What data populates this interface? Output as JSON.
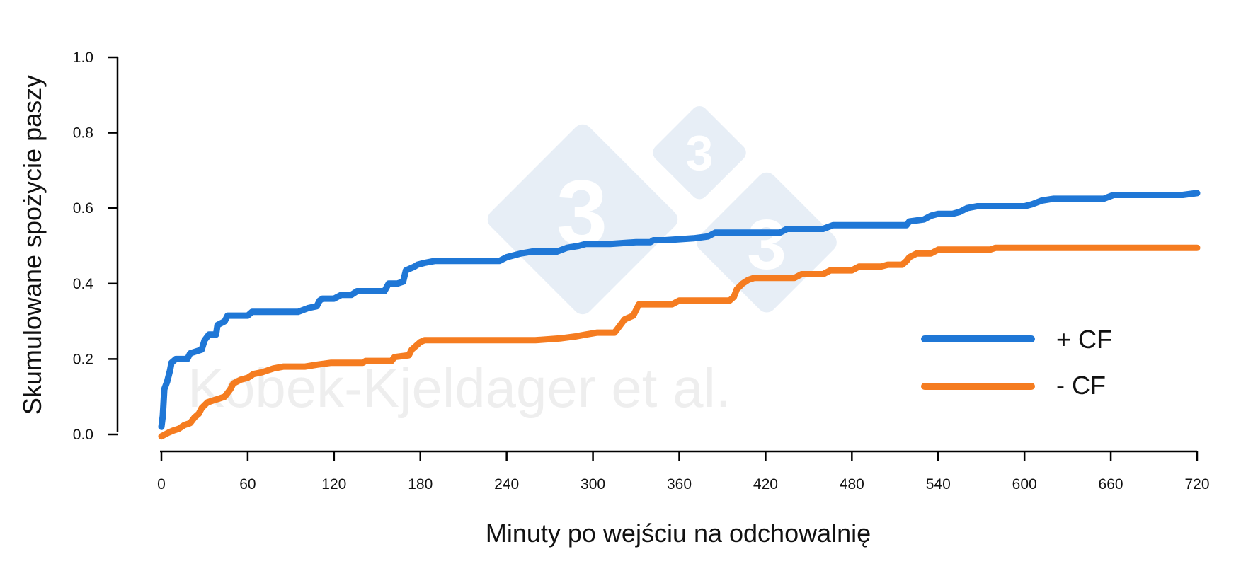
{
  "chart_data": {
    "type": "line",
    "title": "",
    "xlabel": "Minuty po wejściu na odchowalnię",
    "ylabel": "Skumulowane spożycie paszy",
    "xlim": [
      0,
      720
    ],
    "ylim": [
      0.0,
      1.0
    ],
    "xticks": [
      0,
      60,
      120,
      180,
      240,
      300,
      360,
      420,
      480,
      540,
      600,
      660,
      720
    ],
    "xtick_labels": [
      "0",
      "60",
      "120",
      "180",
      "240",
      "300",
      "360",
      "420",
      "480",
      "540",
      "600",
      "660",
      "720"
    ],
    "yticks": [
      0.0,
      0.2,
      0.4,
      0.6,
      0.8,
      1.0
    ],
    "ytick_labels": [
      "0.0",
      "0.2",
      "0.4",
      "0.6",
      "0.8",
      "1.0"
    ],
    "grid": false,
    "legend_position": "right",
    "watermark": "Kobek-Kjeldager et al.",
    "series": [
      {
        "name": "+ CF",
        "color": "#1f77d6",
        "points": [
          [
            0,
            0.02
          ],
          [
            1,
            0.05
          ],
          [
            2,
            0.12
          ],
          [
            4,
            0.14
          ],
          [
            6,
            0.17
          ],
          [
            7,
            0.19
          ],
          [
            10,
            0.2
          ],
          [
            18,
            0.2
          ],
          [
            20,
            0.215
          ],
          [
            28,
            0.225
          ],
          [
            30,
            0.25
          ],
          [
            33,
            0.265
          ],
          [
            38,
            0.265
          ],
          [
            39,
            0.29
          ],
          [
            44,
            0.3
          ],
          [
            46,
            0.315
          ],
          [
            60,
            0.315
          ],
          [
            63,
            0.325
          ],
          [
            80,
            0.325
          ],
          [
            95,
            0.325
          ],
          [
            102,
            0.335
          ],
          [
            108,
            0.34
          ],
          [
            110,
            0.355
          ],
          [
            112,
            0.36
          ],
          [
            120,
            0.36
          ],
          [
            125,
            0.37
          ],
          [
            132,
            0.37
          ],
          [
            136,
            0.38
          ],
          [
            155,
            0.38
          ],
          [
            158,
            0.4
          ],
          [
            164,
            0.4
          ],
          [
            168,
            0.405
          ],
          [
            170,
            0.435
          ],
          [
            176,
            0.445
          ],
          [
            178,
            0.45
          ],
          [
            183,
            0.455
          ],
          [
            190,
            0.46
          ],
          [
            210,
            0.46
          ],
          [
            235,
            0.46
          ],
          [
            240,
            0.47
          ],
          [
            250,
            0.48
          ],
          [
            258,
            0.485
          ],
          [
            275,
            0.485
          ],
          [
            282,
            0.495
          ],
          [
            290,
            0.5
          ],
          [
            295,
            0.505
          ],
          [
            312,
            0.505
          ],
          [
            330,
            0.51
          ],
          [
            340,
            0.51
          ],
          [
            342,
            0.515
          ],
          [
            350,
            0.515
          ],
          [
            370,
            0.52
          ],
          [
            380,
            0.525
          ],
          [
            385,
            0.535
          ],
          [
            405,
            0.535
          ],
          [
            430,
            0.535
          ],
          [
            435,
            0.545
          ],
          [
            460,
            0.545
          ],
          [
            467,
            0.555
          ],
          [
            500,
            0.555
          ],
          [
            518,
            0.555
          ],
          [
            520,
            0.565
          ],
          [
            530,
            0.57
          ],
          [
            535,
            0.58
          ],
          [
            540,
            0.585
          ],
          [
            550,
            0.585
          ],
          [
            555,
            0.59
          ],
          [
            560,
            0.6
          ],
          [
            567,
            0.605
          ],
          [
            580,
            0.605
          ],
          [
            600,
            0.605
          ],
          [
            605,
            0.61
          ],
          [
            612,
            0.62
          ],
          [
            620,
            0.625
          ],
          [
            640,
            0.625
          ],
          [
            655,
            0.625
          ],
          [
            662,
            0.635
          ],
          [
            690,
            0.635
          ],
          [
            710,
            0.635
          ],
          [
            720,
            0.64
          ]
        ]
      },
      {
        "name": "- CF",
        "color": "#f57c20",
        "points": [
          [
            0,
            -0.005
          ],
          [
            5,
            0.005
          ],
          [
            8,
            0.01
          ],
          [
            12,
            0.015
          ],
          [
            16,
            0.025
          ],
          [
            20,
            0.03
          ],
          [
            23,
            0.045
          ],
          [
            26,
            0.055
          ],
          [
            28,
            0.07
          ],
          [
            32,
            0.085
          ],
          [
            36,
            0.09
          ],
          [
            40,
            0.095
          ],
          [
            44,
            0.1
          ],
          [
            48,
            0.12
          ],
          [
            50,
            0.135
          ],
          [
            55,
            0.145
          ],
          [
            60,
            0.15
          ],
          [
            64,
            0.16
          ],
          [
            70,
            0.165
          ],
          [
            78,
            0.175
          ],
          [
            85,
            0.18
          ],
          [
            100,
            0.18
          ],
          [
            108,
            0.185
          ],
          [
            118,
            0.19
          ],
          [
            140,
            0.19
          ],
          [
            142,
            0.195
          ],
          [
            160,
            0.195
          ],
          [
            162,
            0.205
          ],
          [
            172,
            0.21
          ],
          [
            174,
            0.225
          ],
          [
            180,
            0.245
          ],
          [
            183,
            0.25
          ],
          [
            210,
            0.25
          ],
          [
            260,
            0.25
          ],
          [
            278,
            0.255
          ],
          [
            288,
            0.26
          ],
          [
            295,
            0.265
          ],
          [
            303,
            0.27
          ],
          [
            315,
            0.27
          ],
          [
            318,
            0.285
          ],
          [
            322,
            0.305
          ],
          [
            328,
            0.315
          ],
          [
            330,
            0.33
          ],
          [
            332,
            0.345
          ],
          [
            340,
            0.345
          ],
          [
            355,
            0.345
          ],
          [
            360,
            0.355
          ],
          [
            378,
            0.355
          ],
          [
            395,
            0.355
          ],
          [
            398,
            0.365
          ],
          [
            400,
            0.385
          ],
          [
            404,
            0.4
          ],
          [
            408,
            0.41
          ],
          [
            412,
            0.415
          ],
          [
            440,
            0.415
          ],
          [
            445,
            0.425
          ],
          [
            460,
            0.425
          ],
          [
            465,
            0.435
          ],
          [
            480,
            0.435
          ],
          [
            485,
            0.445
          ],
          [
            500,
            0.445
          ],
          [
            505,
            0.45
          ],
          [
            515,
            0.45
          ],
          [
            518,
            0.46
          ],
          [
            520,
            0.47
          ],
          [
            525,
            0.48
          ],
          [
            535,
            0.48
          ],
          [
            540,
            0.49
          ],
          [
            560,
            0.49
          ],
          [
            576,
            0.49
          ],
          [
            580,
            0.495
          ],
          [
            600,
            0.495
          ],
          [
            650,
            0.495
          ],
          [
            700,
            0.495
          ],
          [
            720,
            0.495
          ]
        ]
      }
    ]
  }
}
